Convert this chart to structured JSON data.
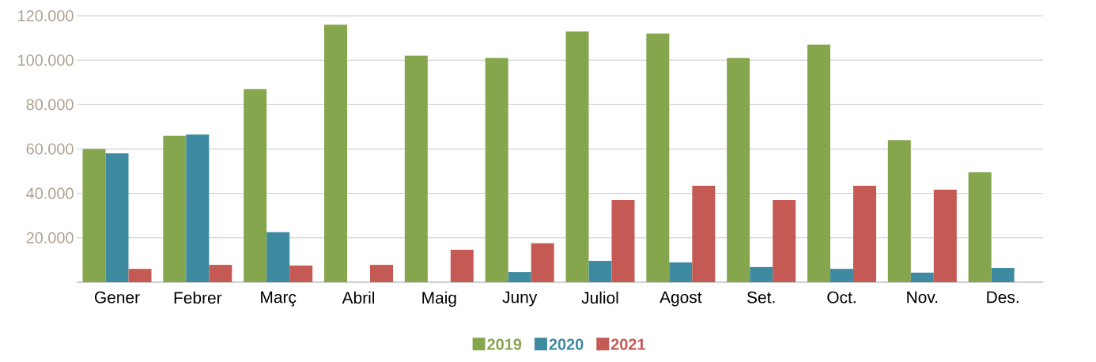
{
  "chart_data": {
    "type": "bar",
    "categories": [
      "Gener",
      "Febrer",
      "Març",
      "Abril",
      "Maig",
      "Juny",
      "Juliol",
      "Agost",
      "Set.",
      "Oct.",
      "Nov.",
      "Des."
    ],
    "series": [
      {
        "name": "2019",
        "color": "#86a64e",
        "values": [
          60000,
          66000,
          87000,
          116000,
          102000,
          101000,
          113000,
          112000,
          101000,
          107000,
          64000,
          49500
        ]
      },
      {
        "name": "2020",
        "color": "#3e8aa0",
        "values": [
          58000,
          66500,
          22500,
          0,
          0,
          4600,
          9600,
          8900,
          6800,
          6000,
          4300,
          6400
        ]
      },
      {
        "name": "2021",
        "color": "#c55a55",
        "values": [
          6000,
          7800,
          7500,
          7800,
          14600,
          17500,
          37000,
          43400,
          37000,
          43400,
          41700,
          null
        ]
      }
    ],
    "ylim": [
      0,
      120000
    ],
    "yticks": [
      {
        "value": 20000,
        "label": "20.000"
      },
      {
        "value": 40000,
        "label": "40.000"
      },
      {
        "value": 60000,
        "label": "60.000"
      },
      {
        "value": 80000,
        "label": "80.000"
      },
      {
        "value": 100000,
        "label": "100.000"
      },
      {
        "value": 120000,
        "label": "120.000"
      }
    ],
    "grid": "y",
    "legend": "bottom"
  }
}
